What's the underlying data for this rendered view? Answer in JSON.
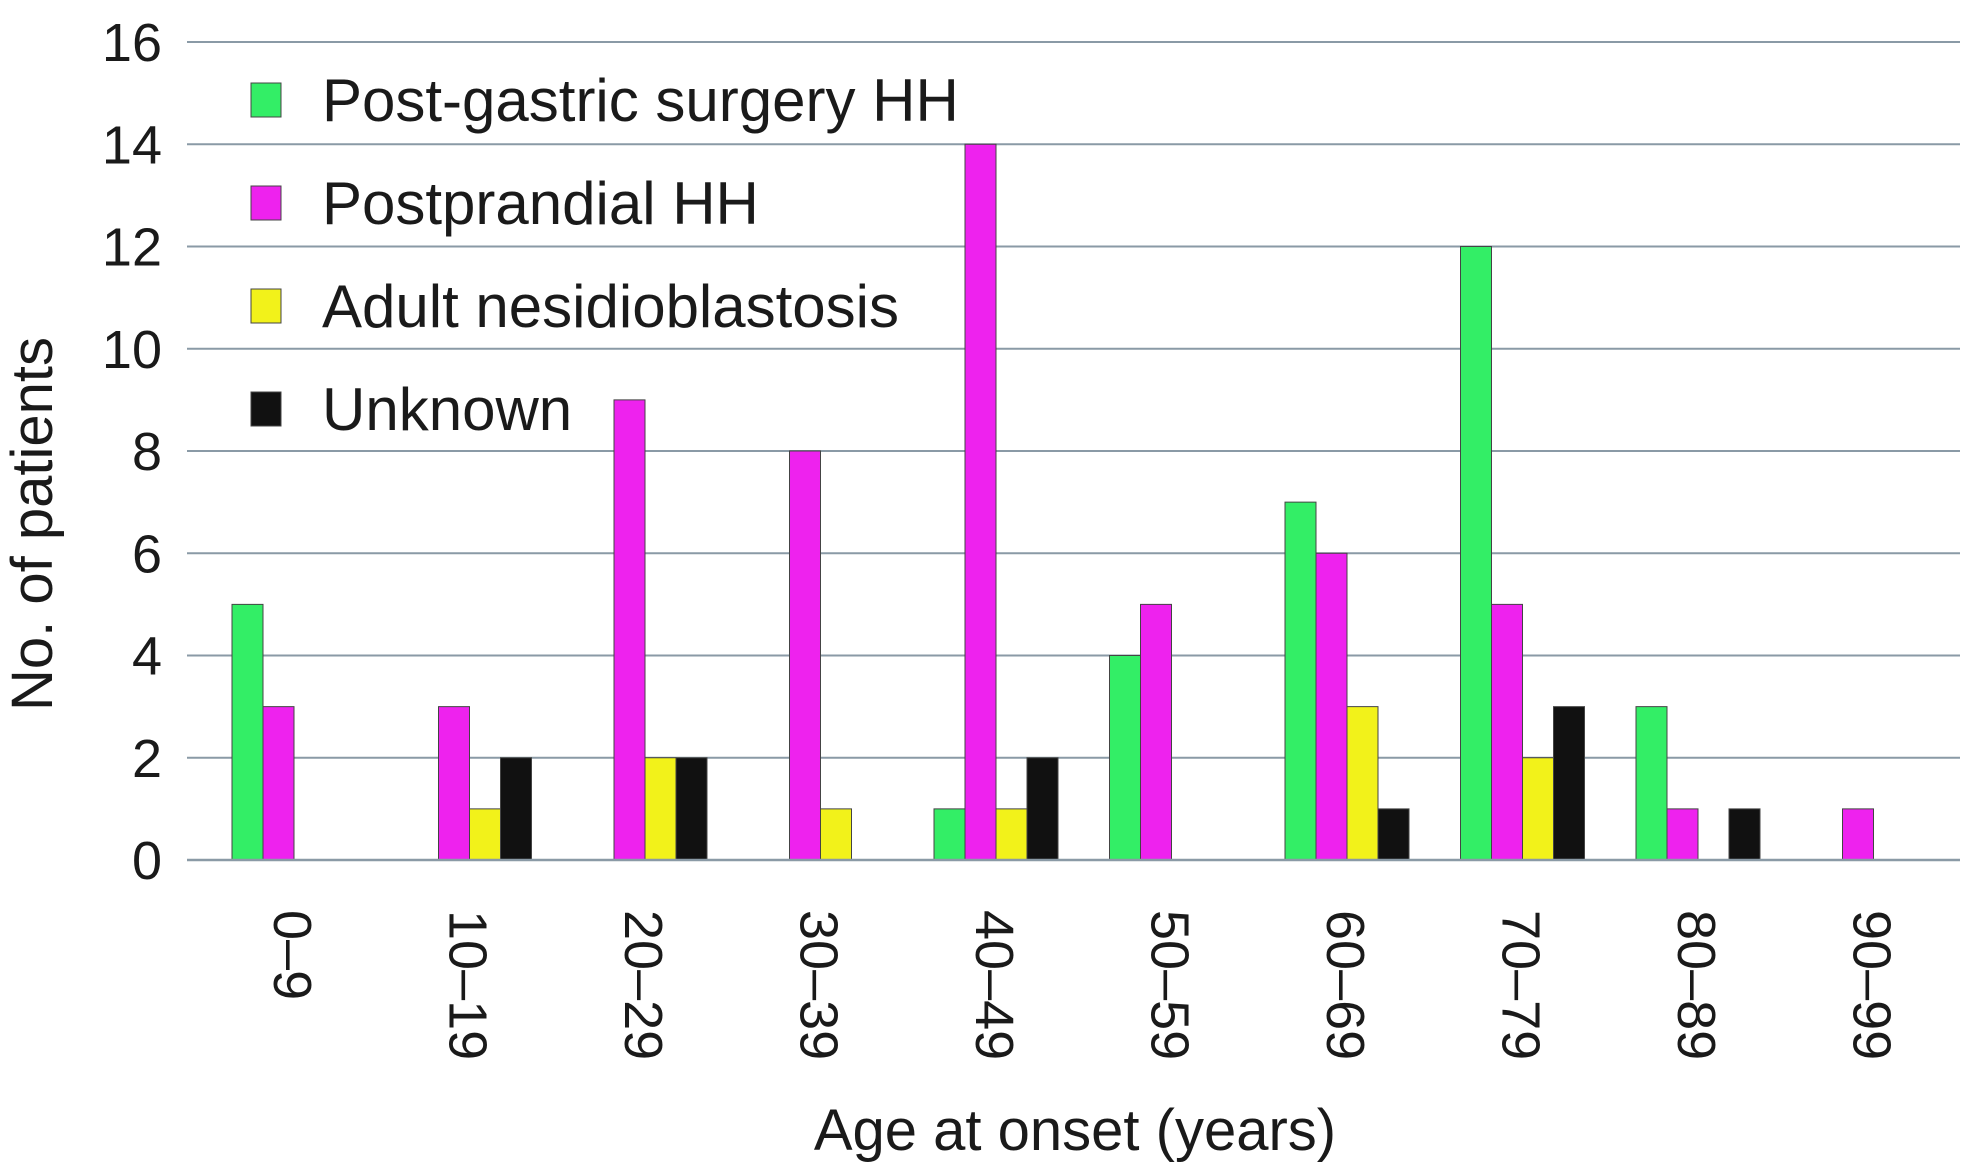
{
  "chart_data": {
    "type": "bar",
    "title": "",
    "xlabel": "Age at onset (years)",
    "ylabel": "No. of patients",
    "ylim": [
      0,
      16
    ],
    "yticks": [
      0,
      2,
      4,
      6,
      8,
      10,
      12,
      14,
      16
    ],
    "ytick_labels": [
      "0",
      "2",
      "4",
      "6",
      "8",
      "10",
      "12",
      "14",
      "16"
    ],
    "grid": true,
    "legend_position": "top-left",
    "categories": [
      "0–9",
      "10–19",
      "20–29",
      "30–39",
      "40–49",
      "50–59",
      "60–69",
      "70–79",
      "80–89",
      "90–99"
    ],
    "series": [
      {
        "name": "Post-gastric surgery HH",
        "color": "#33ee66",
        "values": [
          5,
          0,
          0,
          0,
          1,
          4,
          7,
          12,
          3,
          0
        ]
      },
      {
        "name": "Postprandial HH",
        "color": "#ee22ee",
        "values": [
          3,
          3,
          9,
          8,
          14,
          5,
          6,
          5,
          1,
          1
        ]
      },
      {
        "name": "Adult nesidioblastosis",
        "color": "#f2f21a",
        "values": [
          0,
          1,
          2,
          1,
          1,
          0,
          3,
          2,
          0,
          0
        ]
      },
      {
        "name": "Unknown",
        "color": "#111111",
        "values": [
          0,
          2,
          2,
          0,
          2,
          0,
          1,
          3,
          1,
          0
        ]
      }
    ]
  }
}
